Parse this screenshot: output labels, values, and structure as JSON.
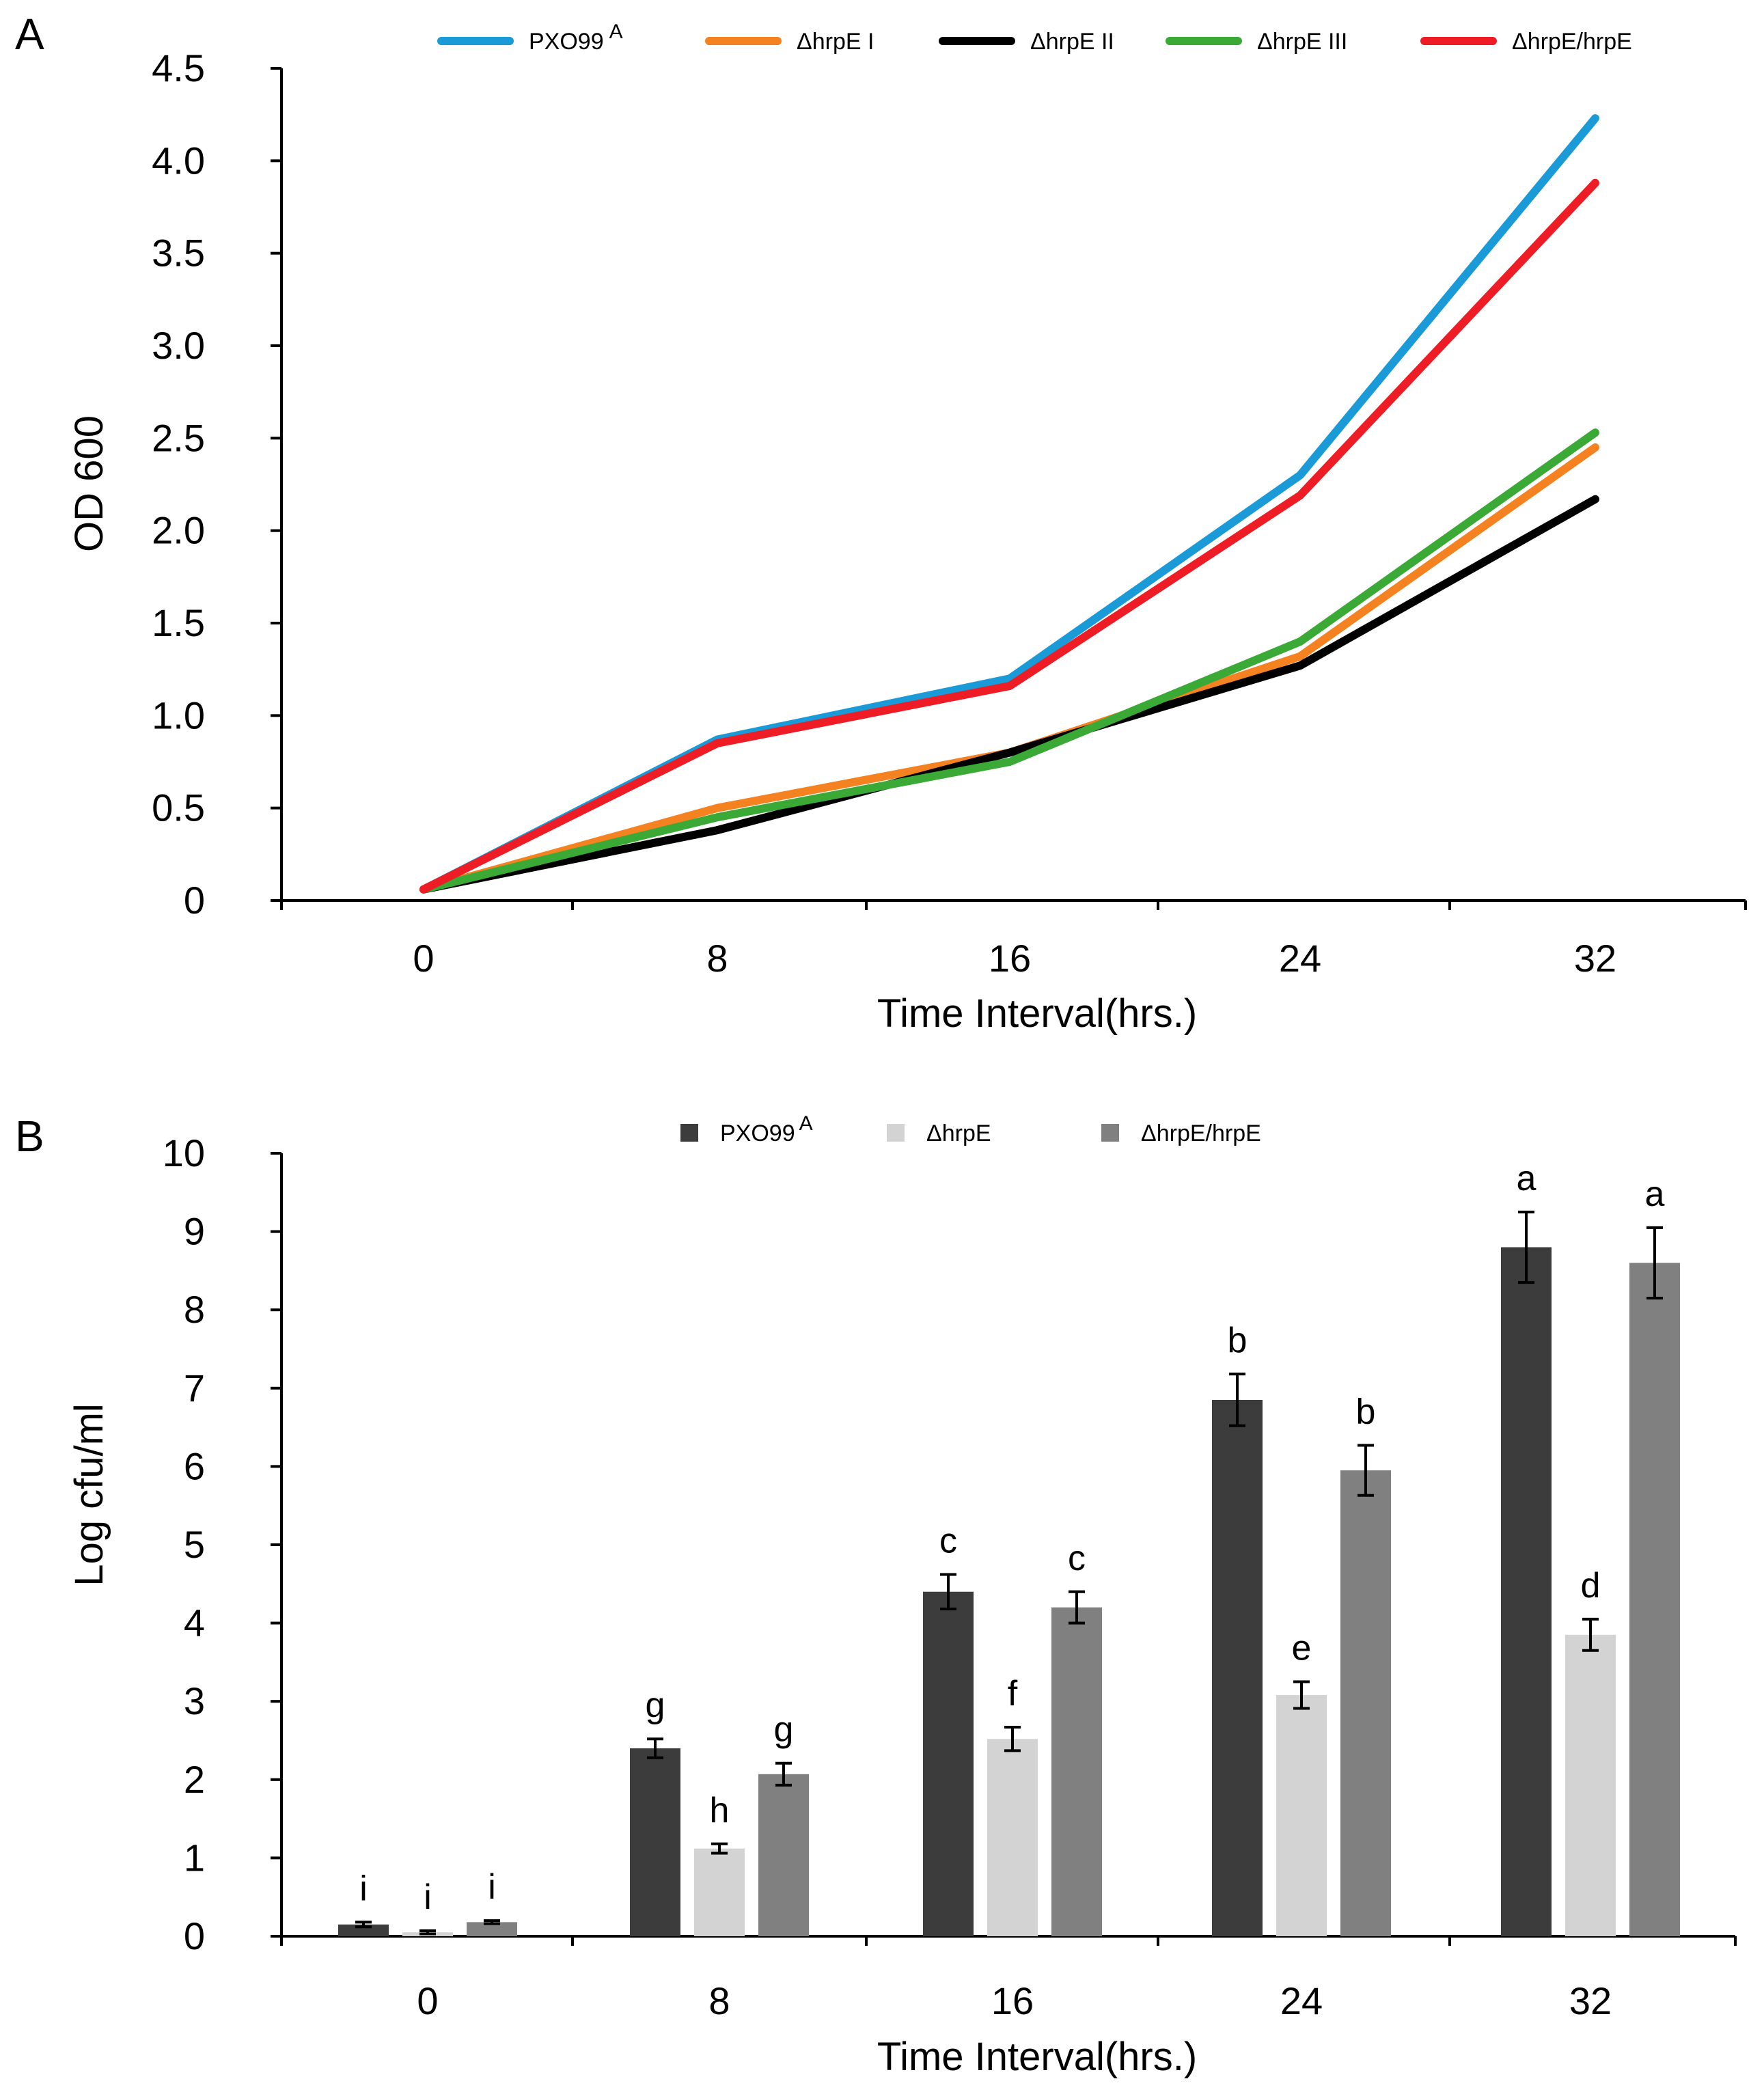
{
  "chart_data": [
    {
      "panel": "A",
      "type": "line",
      "xlabel": "Time Interval(hrs.)",
      "ylabel": "OD 600",
      "categories": [
        "0",
        "8",
        "16",
        "24",
        "32"
      ],
      "ylim": [
        0,
        4.5
      ],
      "yticks": [
        0,
        0.5,
        1.0,
        1.5,
        2.0,
        2.5,
        3.0,
        3.5,
        4.0,
        4.5
      ],
      "ytick_labels": [
        "0",
        "0.5",
        "1.0",
        "1.5",
        "2.0",
        "2.5",
        "3.0",
        "3.5",
        "4.0",
        "4.5"
      ],
      "legend_position": "top",
      "series": [
        {
          "name": "PXO99",
          "sup": "A",
          "color": "#1a9ad6",
          "values": [
            0.06,
            0.87,
            1.2,
            2.3,
            4.23
          ]
        },
        {
          "name": "ΔhrpE I",
          "color": "#f58220",
          "values": [
            0.06,
            0.5,
            0.8,
            1.32,
            2.45
          ]
        },
        {
          "name": "ΔhrpE II",
          "color": "#000000",
          "values": [
            0.06,
            0.38,
            0.8,
            1.27,
            2.17
          ]
        },
        {
          "name": "ΔhrpE III",
          "color": "#3aa935",
          "values": [
            0.06,
            0.45,
            0.75,
            1.4,
            2.53
          ]
        },
        {
          "name": "ΔhrpE/hrpE",
          "color": "#ee1c25",
          "values": [
            0.06,
            0.85,
            1.16,
            2.19,
            3.88
          ]
        }
      ]
    },
    {
      "panel": "B",
      "type": "bar",
      "xlabel": "Time Interval(hrs.)",
      "ylabel": "Log cfu/ml",
      "categories": [
        "0",
        "8",
        "16",
        "24",
        "32"
      ],
      "ylim": [
        0,
        10
      ],
      "yticks": [
        0,
        1,
        2,
        3,
        4,
        5,
        6,
        7,
        8,
        9,
        10
      ],
      "legend_position": "top",
      "series": [
        {
          "name": "PXO99",
          "sup": "A",
          "color": "#3c3c3c",
          "values": [
            0.15,
            2.4,
            4.4,
            6.85,
            8.8
          ],
          "errors": [
            0.03,
            0.12,
            0.22,
            0.33,
            0.45
          ],
          "letters": [
            "i",
            "g",
            "c",
            "b",
            "a"
          ]
        },
        {
          "name": "ΔhrpE",
          "color": "#d3d3d3",
          "values": [
            0.05,
            1.12,
            2.52,
            3.08,
            3.85
          ],
          "errors": [
            0.02,
            0.06,
            0.15,
            0.17,
            0.2
          ],
          "letters": [
            "i",
            "h",
            "f",
            "e",
            "d"
          ]
        },
        {
          "name": "ΔhrpE/hrpE",
          "color": "#808080",
          "values": [
            0.18,
            2.07,
            4.2,
            5.95,
            8.6
          ],
          "errors": [
            0.02,
            0.14,
            0.2,
            0.32,
            0.45
          ],
          "letters": [
            "i",
            "g",
            "c",
            "b",
            "a"
          ]
        }
      ]
    }
  ]
}
